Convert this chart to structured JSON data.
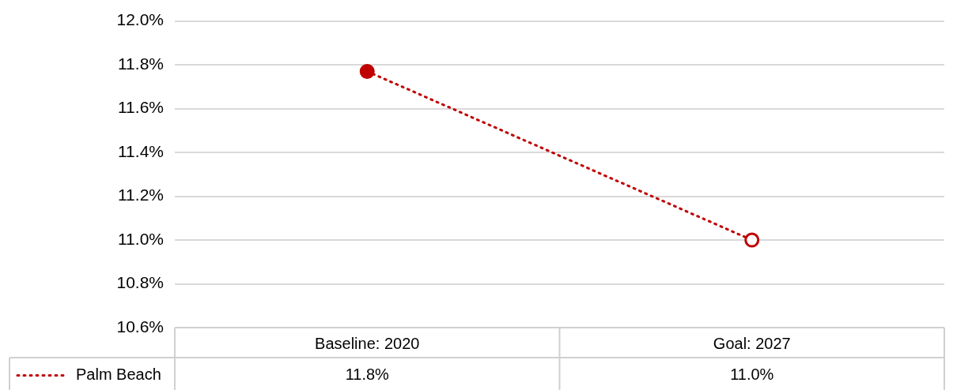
{
  "chart_data": {
    "type": "line",
    "categories": [
      "Baseline: 2020",
      "Goal: 2027"
    ],
    "series": [
      {
        "name": "Palm Beach",
        "color": "#c00000",
        "values": [
          11.77,
          11.0
        ],
        "value_labels": [
          "11.8%",
          "11.0%"
        ]
      }
    ],
    "ylim": [
      10.6,
      12.0
    ],
    "yticks": [
      {
        "value": 10.6,
        "label": "10.6%"
      },
      {
        "value": 10.8,
        "label": "10.8%"
      },
      {
        "value": 11.0,
        "label": "11.0%"
      },
      {
        "value": 11.2,
        "label": "11.2%"
      },
      {
        "value": 11.4,
        "label": "11.4%"
      },
      {
        "value": 11.6,
        "label": "11.6%"
      },
      {
        "value": 11.8,
        "label": "11.8%"
      },
      {
        "value": 12.0,
        "label": "12.0%"
      }
    ],
    "grid": "y",
    "legend": "bottom left",
    "marker": "circle",
    "line_style": "dotted"
  }
}
